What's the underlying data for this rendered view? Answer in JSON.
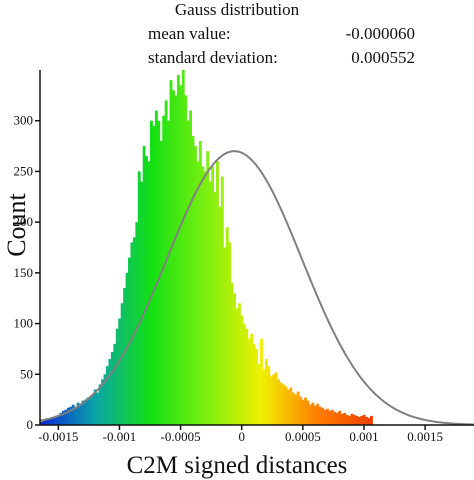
{
  "chart_data": {
    "type": "bar",
    "info": {
      "title": "Gauss distribution",
      "mean_label": "mean value:",
      "mean_value": "-0.000060",
      "sd_label": "standard deviation:",
      "sd_value": "0.000552"
    },
    "xlabel": "C2M signed distances",
    "ylabel": "Count",
    "xlim": [
      -0.00165,
      0.0019
    ],
    "ylim": [
      0,
      350
    ],
    "x_ticks": [
      {
        "v": -0.0015,
        "label": "-0.0015"
      },
      {
        "v": -0.001,
        "label": "-0.001"
      },
      {
        "v": -0.0005,
        "label": "-0.0005"
      },
      {
        "v": 0,
        "label": "0"
      },
      {
        "v": 0.0005,
        "label": "0.0005"
      },
      {
        "v": 0.001,
        "label": "0.001"
      },
      {
        "v": 0.0015,
        "label": "0.0015"
      }
    ],
    "y_ticks": [
      {
        "v": 0,
        "label": "0"
      },
      {
        "v": 50,
        "label": "50"
      },
      {
        "v": 100,
        "label": "100"
      },
      {
        "v": 150,
        "label": "150"
      },
      {
        "v": 200,
        "label": "200"
      },
      {
        "v": 250,
        "label": "250"
      },
      {
        "v": 300,
        "label": "300"
      }
    ],
    "bin_start": -0.00165,
    "bin_width": 2e-05,
    "counts": [
      3,
      4,
      5,
      6,
      7,
      8,
      9,
      10,
      12,
      14,
      15,
      17,
      18,
      20,
      18,
      22,
      20,
      24,
      25,
      27,
      28,
      30,
      35,
      32,
      40,
      45,
      50,
      58,
      65,
      72,
      80,
      95,
      105,
      120,
      135,
      150,
      165,
      180,
      185,
      200,
      250,
      240,
      275,
      265,
      260,
      300,
      295,
      310,
      300,
      280,
      305,
      320,
      300,
      340,
      330,
      325,
      345,
      335,
      350,
      325,
      300,
      310,
      285,
      275,
      260,
      280,
      255,
      250,
      270,
      240,
      255,
      230,
      260,
      215,
      245,
      175,
      195,
      180,
      140,
      130,
      115,
      120,
      108,
      100,
      95,
      85,
      90,
      80,
      75,
      60,
      85,
      55,
      65,
      58,
      48,
      50,
      52,
      45,
      42,
      40,
      38,
      35,
      37,
      32,
      30,
      33,
      28,
      25,
      27,
      24,
      20,
      22,
      19,
      21,
      18,
      17,
      15,
      16,
      14,
      15,
      13,
      12,
      14,
      11,
      12,
      10,
      9,
      11,
      10,
      9,
      8,
      9,
      10,
      8,
      7,
      9
    ],
    "gauss": {
      "mean": -6e-05,
      "sd": 0.000552,
      "peak": 270
    },
    "colormap": [
      "#0a2bd8",
      "#0aa6a6",
      "#13e013",
      "#7df010",
      "#f0f000",
      "#ff8000",
      "#f04000"
    ],
    "colors": {
      "curve": "#808080",
      "axis": "#111111"
    }
  }
}
